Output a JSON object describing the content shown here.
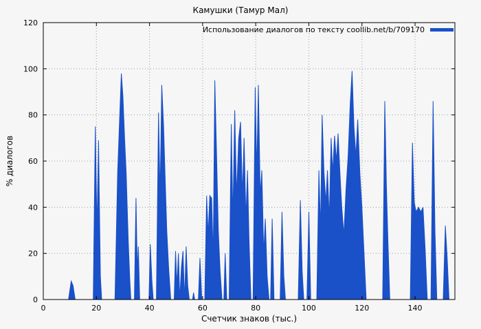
{
  "title": "Камушки (Тамур Мал)",
  "legend": {
    "label": "Использование диалогов по тексту coollib.net/b/709170"
  },
  "axes": {
    "ylabel": "% диалогов",
    "xlabel": "Счетчик знаков (тыс.)"
  },
  "colors": {
    "series": "#1a50c8",
    "grid": "#9a9a9a",
    "border": "#000000"
  },
  "chart_data": {
    "type": "area",
    "title": "Камушки (Тамур Мал)",
    "series_name": "Использование диалогов по тексту coollib.net/b/709170",
    "xlabel": "Счетчик знаков (тыс.)",
    "ylabel": "% диалогов",
    "xlim": [
      0,
      155
    ],
    "ylim": [
      0,
      120
    ],
    "xticks": [
      0,
      20,
      40,
      60,
      80,
      100,
      120,
      140
    ],
    "yticks": [
      0,
      20,
      40,
      60,
      80,
      100,
      120
    ],
    "grid": true,
    "legend_position": "top-right",
    "color": "#1a50c8",
    "points": [
      [
        0,
        0
      ],
      [
        9.5,
        0
      ],
      [
        10.5,
        8
      ],
      [
        11.2,
        6
      ],
      [
        12,
        0
      ],
      [
        18.8,
        0
      ],
      [
        19.6,
        75
      ],
      [
        20.2,
        30
      ],
      [
        20.8,
        69
      ],
      [
        21.5,
        10
      ],
      [
        22,
        0
      ],
      [
        27,
        0
      ],
      [
        28,
        55
      ],
      [
        28.8,
        80
      ],
      [
        29.4,
        98
      ],
      [
        30,
        88
      ],
      [
        30.6,
        70
      ],
      [
        31.2,
        55
      ],
      [
        32,
        25
      ],
      [
        32.6,
        8
      ],
      [
        33,
        0
      ],
      [
        34.3,
        0
      ],
      [
        34.9,
        44
      ],
      [
        35.4,
        12
      ],
      [
        35.8,
        23
      ],
      [
        36.3,
        0
      ],
      [
        39.8,
        0
      ],
      [
        40.3,
        24
      ],
      [
        40.9,
        8
      ],
      [
        41.4,
        0
      ],
      [
        42.6,
        0
      ],
      [
        43.4,
        81
      ],
      [
        44,
        45
      ],
      [
        44.6,
        93
      ],
      [
        45.3,
        75
      ],
      [
        45.8,
        56
      ],
      [
        46.5,
        30
      ],
      [
        47.2,
        14
      ],
      [
        48,
        0
      ],
      [
        49.3,
        0
      ],
      [
        49.8,
        21
      ],
      [
        50.3,
        6
      ],
      [
        50.9,
        20
      ],
      [
        51.4,
        0
      ],
      [
        52,
        14
      ],
      [
        52.6,
        21
      ],
      [
        53.2,
        0
      ],
      [
        53.8,
        23
      ],
      [
        54.4,
        6
      ],
      [
        55,
        0
      ],
      [
        56.2,
        0
      ],
      [
        56.6,
        3
      ],
      [
        57,
        0
      ],
      [
        58.4,
        0
      ],
      [
        59,
        18
      ],
      [
        59.7,
        0
      ],
      [
        60.8,
        0
      ],
      [
        61.5,
        45
      ],
      [
        62.1,
        28
      ],
      [
        62.7,
        45
      ],
      [
        63.4,
        44
      ],
      [
        64,
        18
      ],
      [
        64.6,
        95
      ],
      [
        65.3,
        60
      ],
      [
        65.9,
        30
      ],
      [
        66.6,
        12
      ],
      [
        67.3,
        0
      ],
      [
        68,
        0
      ],
      [
        68.5,
        20
      ],
      [
        69.1,
        0
      ],
      [
        70,
        0
      ],
      [
        70.8,
        76
      ],
      [
        71.4,
        35
      ],
      [
        72.1,
        82
      ],
      [
        72.8,
        45
      ],
      [
        73.6,
        70
      ],
      [
        74.3,
        77
      ],
      [
        75,
        45
      ],
      [
        75.6,
        70
      ],
      [
        76.3,
        35
      ],
      [
        76.9,
        56
      ],
      [
        77.5,
        25
      ],
      [
        78.2,
        0
      ],
      [
        79,
        0
      ],
      [
        79.8,
        92
      ],
      [
        80.4,
        55
      ],
      [
        81,
        93
      ],
      [
        81.7,
        45
      ],
      [
        82.3,
        56
      ],
      [
        83,
        20
      ],
      [
        83.6,
        35
      ],
      [
        84.3,
        10
      ],
      [
        85,
        0
      ],
      [
        85.6,
        0
      ],
      [
        86.2,
        35
      ],
      [
        86.9,
        0
      ],
      [
        89.2,
        0
      ],
      [
        89.9,
        38
      ],
      [
        90.6,
        10
      ],
      [
        91.2,
        0
      ],
      [
        96,
        0
      ],
      [
        96.8,
        43
      ],
      [
        97.5,
        12
      ],
      [
        98.1,
        0
      ],
      [
        99.3,
        0
      ],
      [
        100,
        38
      ],
      [
        100.7,
        0
      ],
      [
        103,
        0
      ],
      [
        103.8,
        56
      ],
      [
        104.4,
        30
      ],
      [
        105,
        80
      ],
      [
        105.7,
        55
      ],
      [
        106.4,
        42
      ],
      [
        107,
        56
      ],
      [
        107.7,
        35
      ],
      [
        108.4,
        70
      ],
      [
        109,
        55
      ],
      [
        109.7,
        71
      ],
      [
        110.4,
        60
      ],
      [
        111,
        72
      ],
      [
        111.7,
        55
      ],
      [
        112.4,
        40
      ],
      [
        113.2,
        28
      ],
      [
        114,
        48
      ],
      [
        114.8,
        62
      ],
      [
        115.6,
        85
      ],
      [
        116.3,
        99
      ],
      [
        117,
        75
      ],
      [
        117.7,
        62
      ],
      [
        118.4,
        78
      ],
      [
        119.2,
        55
      ],
      [
        120,
        40
      ],
      [
        120.8,
        20
      ],
      [
        121.6,
        0
      ],
      [
        127.8,
        0
      ],
      [
        128.6,
        86
      ],
      [
        129.2,
        50
      ],
      [
        129.8,
        25
      ],
      [
        130.5,
        0
      ],
      [
        138.2,
        0
      ],
      [
        139,
        68
      ],
      [
        139.7,
        42
      ],
      [
        140.4,
        38
      ],
      [
        141.3,
        40
      ],
      [
        142.2,
        38
      ],
      [
        143,
        40
      ],
      [
        143.8,
        22
      ],
      [
        144.6,
        0
      ],
      [
        146,
        0
      ],
      [
        146.8,
        86
      ],
      [
        147.5,
        30
      ],
      [
        148.2,
        0
      ],
      [
        150.6,
        0
      ],
      [
        151.4,
        32
      ],
      [
        152.1,
        18
      ],
      [
        152.8,
        0
      ],
      [
        155,
        0
      ]
    ]
  }
}
